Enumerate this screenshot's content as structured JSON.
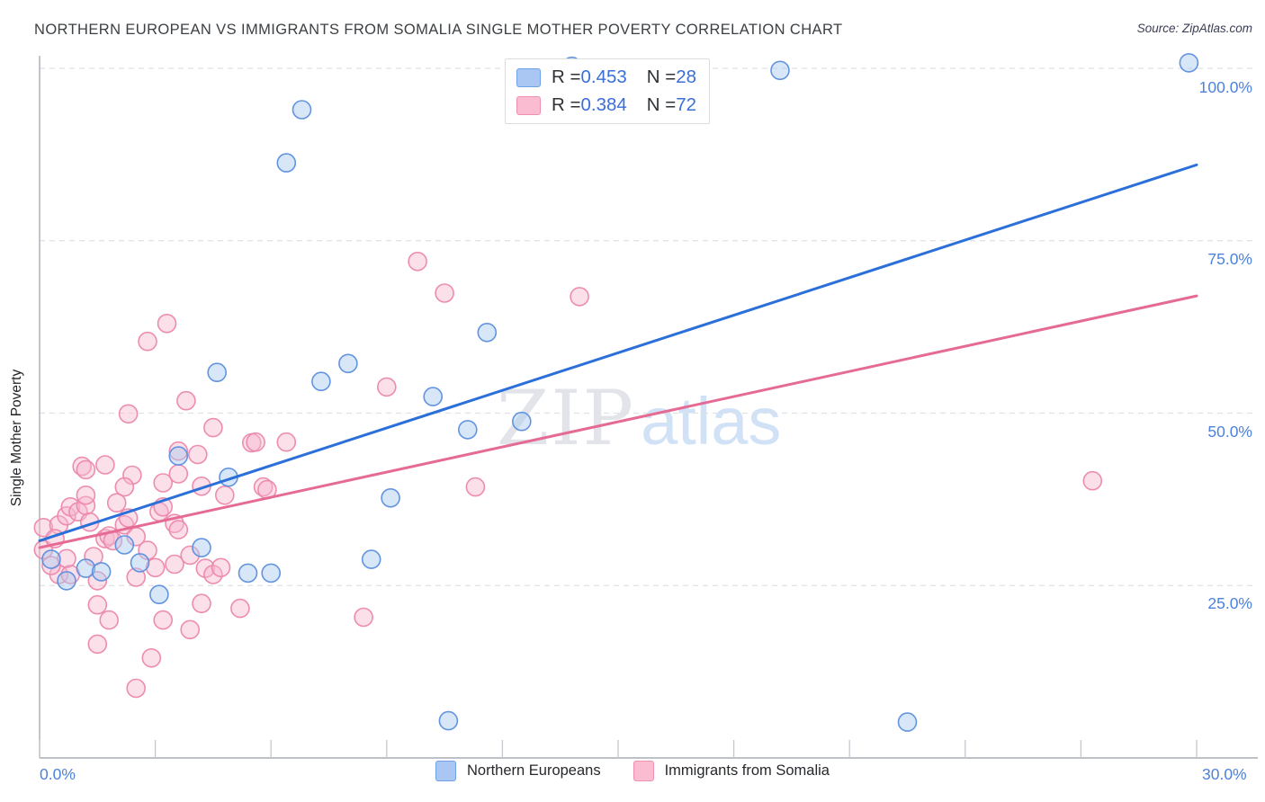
{
  "header": {
    "title": "NORTHERN EUROPEAN VS IMMIGRANTS FROM SOMALIA SINGLE MOTHER POVERTY CORRELATION CHART",
    "source": "Source: ZipAtlas.com"
  },
  "watermark": {
    "zip": "ZIP",
    "atlas": "atlas"
  },
  "axes": {
    "y_label": "Single Mother Poverty",
    "y_tick_labels": [
      "100.0%",
      "75.0%",
      "50.0%",
      "25.0%"
    ],
    "x_tick_min": "0.0%",
    "x_tick_max": "30.0%"
  },
  "legend_box": {
    "rows": [
      {
        "series": "Northern Europeans",
        "r_label": "R = ",
        "r_value": "0.453",
        "n_label": "N = ",
        "n_value": "28"
      },
      {
        "series": "Immigrants from Somalia",
        "r_label": "R = ",
        "r_value": "0.384",
        "n_label": "N = ",
        "n_value": "72"
      }
    ]
  },
  "bottom_legend": {
    "items": [
      {
        "label": "Northern Europeans"
      },
      {
        "label": "Immigrants from Somalia"
      }
    ]
  },
  "colors": {
    "blue_stroke": "#5b8ede",
    "blue_fill": "#a9c9f0",
    "pink_stroke": "#ec87ab",
    "pink_fill": "#f6b9cf",
    "blue_trend": "#2b6fd9",
    "pink_trend": "#e56b95",
    "grid": "#dfe1e5",
    "axis": "#a9adb3",
    "tick_label": "#4d82dc"
  },
  "chart_data": {
    "type": "scatter",
    "title": "Northern European vs Immigrants from Somalia Single Mother Poverty",
    "xlabel": "Northern Europeans / Immigrants from Somalia (%)",
    "ylabel": "Single Mother Poverty",
    "xlim": [
      0,
      30
    ],
    "ylim": [
      0,
      100
    ],
    "x_ticks": [
      0,
      3,
      6,
      9,
      12,
      15,
      18,
      21,
      24,
      27,
      30
    ],
    "y_gridlines": [
      25,
      50,
      75,
      100
    ],
    "grid": true,
    "legend_position": "top-center",
    "series": [
      {
        "name": "Northern Europeans",
        "R": 0.453,
        "N": 28,
        "stroke": "#5b8ede",
        "fill": "#a9c9f0",
        "points": [
          [
            0.3,
            28.8
          ],
          [
            0.7,
            25.7
          ],
          [
            1.2,
            27.5
          ],
          [
            1.6,
            27.0
          ],
          [
            2.2,
            30.9
          ],
          [
            2.6,
            28.3
          ],
          [
            3.1,
            23.7
          ],
          [
            3.6,
            43.8
          ],
          [
            4.2,
            30.5
          ],
          [
            4.6,
            55.9
          ],
          [
            4.9,
            40.7
          ],
          [
            5.4,
            26.8
          ],
          [
            6.0,
            26.8
          ],
          [
            6.4,
            86.3
          ],
          [
            6.8,
            94.0
          ],
          [
            7.3,
            54.6
          ],
          [
            8.0,
            57.2
          ],
          [
            8.6,
            28.8
          ],
          [
            9.1,
            37.7
          ],
          [
            10.2,
            52.4
          ],
          [
            10.6,
            5.4
          ],
          [
            11.1,
            47.6
          ],
          [
            11.6,
            61.7
          ],
          [
            12.5,
            48.8
          ],
          [
            13.8,
            100.3
          ],
          [
            19.2,
            99.7
          ],
          [
            22.5,
            5.2
          ],
          [
            29.8,
            100.8
          ]
        ]
      },
      {
        "name": "Immigrants from Somalia",
        "R": 0.384,
        "N": 72,
        "stroke": "#ec87ab",
        "fill": "#f6b9cf",
        "points": [
          [
            0.1,
            33.4
          ],
          [
            0.1,
            30.2
          ],
          [
            0.5,
            33.8
          ],
          [
            0.7,
            35.1
          ],
          [
            0.8,
            36.4
          ],
          [
            1.0,
            35.7
          ],
          [
            1.2,
            36.6
          ],
          [
            1.2,
            38.1
          ],
          [
            1.3,
            34.2
          ],
          [
            0.7,
            28.9
          ],
          [
            0.5,
            26.6
          ],
          [
            0.8,
            26.6
          ],
          [
            1.4,
            29.2
          ],
          [
            1.5,
            25.7
          ],
          [
            1.7,
            31.8
          ],
          [
            1.8,
            32.2
          ],
          [
            1.9,
            31.5
          ],
          [
            2.2,
            33.8
          ],
          [
            2.3,
            34.8
          ],
          [
            2.5,
            32.1
          ],
          [
            2.5,
            26.2
          ],
          [
            2.8,
            30.1
          ],
          [
            3.0,
            27.6
          ],
          [
            3.1,
            35.7
          ],
          [
            3.2,
            36.4
          ],
          [
            3.5,
            34.0
          ],
          [
            3.6,
            33.1
          ],
          [
            3.9,
            29.4
          ],
          [
            4.3,
            27.5
          ],
          [
            4.5,
            26.6
          ],
          [
            4.7,
            27.6
          ],
          [
            3.5,
            28.1
          ],
          [
            3.3,
            63.0
          ],
          [
            2.8,
            60.4
          ],
          [
            3.8,
            51.8
          ],
          [
            2.3,
            49.9
          ],
          [
            4.5,
            47.9
          ],
          [
            5.5,
            45.7
          ],
          [
            3.6,
            44.5
          ],
          [
            4.1,
            44.0
          ],
          [
            1.1,
            42.3
          ],
          [
            1.2,
            41.8
          ],
          [
            1.7,
            42.5
          ],
          [
            2.4,
            41.0
          ],
          [
            2.2,
            39.3
          ],
          [
            3.6,
            41.2
          ],
          [
            3.2,
            39.9
          ],
          [
            4.2,
            39.4
          ],
          [
            4.8,
            38.1
          ],
          [
            5.8,
            39.3
          ],
          [
            10.5,
            67.4
          ],
          [
            9.8,
            72.0
          ],
          [
            14.0,
            66.9
          ],
          [
            9.0,
            53.8
          ],
          [
            5.6,
            45.8
          ],
          [
            6.4,
            45.8
          ],
          [
            5.9,
            38.9
          ],
          [
            11.3,
            39.3
          ],
          [
            4.2,
            22.4
          ],
          [
            5.2,
            21.7
          ],
          [
            3.2,
            20.0
          ],
          [
            3.9,
            18.6
          ],
          [
            2.9,
            14.5
          ],
          [
            2.5,
            10.1
          ],
          [
            8.4,
            20.4
          ],
          [
            1.5,
            22.2
          ],
          [
            1.8,
            20.0
          ],
          [
            1.5,
            16.5
          ],
          [
            27.3,
            40.2
          ],
          [
            0.4,
            31.8
          ],
          [
            0.3,
            27.9
          ],
          [
            2.0,
            37.0
          ]
        ]
      }
    ],
    "trendlines": [
      {
        "series": "Northern Europeans",
        "color": "#2b6fd9",
        "x": [
          0,
          30
        ],
        "y": [
          31.5,
          86.0
        ]
      },
      {
        "series": "Immigrants from Somalia",
        "color": "#e56b95",
        "x": [
          0,
          30
        ],
        "y": [
          30.5,
          67.0
        ]
      }
    ]
  }
}
